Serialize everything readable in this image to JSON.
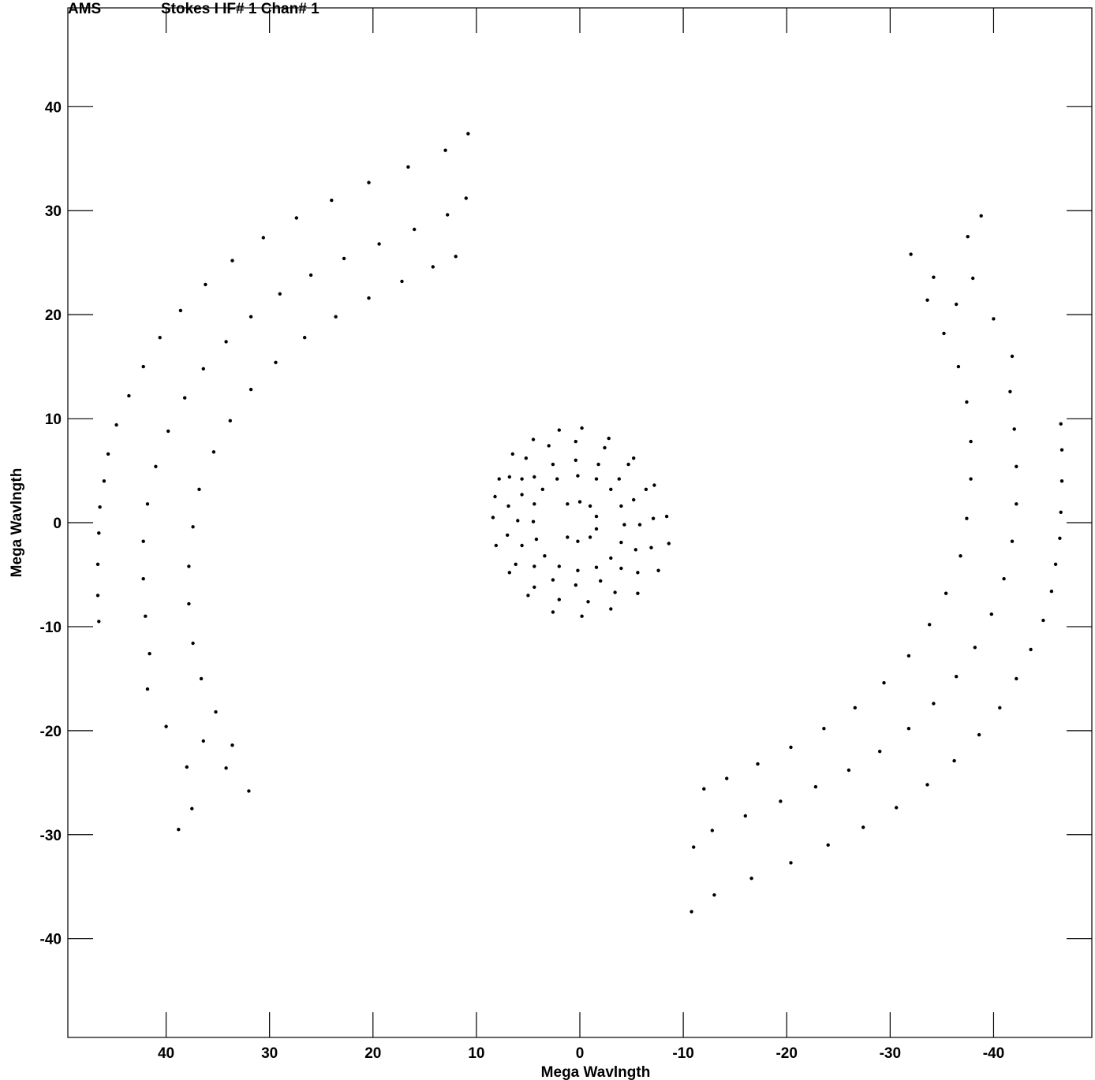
{
  "chart_data": {
    "type": "scatter",
    "title": "Stokes I IF# 1 Chan# 1",
    "title_prefix": "AMS",
    "xlabel": "Mega Wavlngth",
    "ylabel": "Mega Wavlngth",
    "xlim": [
      49.5,
      -49.5
    ],
    "ylim": [
      -49.5,
      49.5
    ],
    "x_reversed": true,
    "grid": false,
    "marker_color": "#000000",
    "xticks": [
      40,
      30,
      20,
      10,
      0,
      -10,
      -20,
      -30,
      -40
    ],
    "xtick_labels": [
      "40",
      "30",
      "20",
      "10",
      "0",
      "-10",
      "-20",
      "-30",
      "-40"
    ],
    "yticks": [
      40,
      30,
      20,
      10,
      0,
      -10,
      -20,
      -30,
      -40
    ],
    "ytick_labels": [
      "40",
      "30",
      "20",
      "10",
      "0",
      "-10",
      "-20",
      "-30",
      "-40"
    ],
    "series": [
      {
        "type": "uv_tracks_inner",
        "points_uv": [
          [
            7.8,
            4.2
          ],
          [
            6.5,
            6.6
          ],
          [
            4.5,
            8.0
          ],
          [
            2.0,
            8.9
          ],
          [
            -0.2,
            9.1
          ],
          [
            -2.8,
            8.1
          ],
          [
            -5.2,
            6.2
          ],
          [
            -7.2,
            3.6
          ],
          [
            -8.4,
            0.6
          ],
          [
            -8.6,
            -2.0
          ],
          [
            -7.6,
            -4.6
          ],
          [
            -5.6,
            -6.8
          ],
          [
            -3.0,
            -8.3
          ],
          [
            -0.2,
            -9.0
          ],
          [
            2.6,
            -8.6
          ],
          [
            5.0,
            -7.0
          ],
          [
            6.8,
            -4.8
          ],
          [
            8.1,
            -2.2
          ],
          [
            8.4,
            0.5
          ],
          [
            8.2,
            2.5
          ],
          [
            6.8,
            4.4
          ],
          [
            5.2,
            6.2
          ],
          [
            3.0,
            7.4
          ],
          [
            0.4,
            7.8
          ],
          [
            -2.4,
            7.2
          ],
          [
            -4.7,
            5.6
          ],
          [
            -6.4,
            3.2
          ],
          [
            -7.1,
            0.4
          ],
          [
            -6.9,
            -2.4
          ],
          [
            -5.6,
            -4.8
          ],
          [
            -3.4,
            -6.7
          ],
          [
            -0.8,
            -7.6
          ],
          [
            2.0,
            -7.4
          ],
          [
            4.4,
            -6.2
          ],
          [
            6.2,
            -4.0
          ],
          [
            7.0,
            -1.2
          ],
          [
            6.9,
            1.6
          ],
          [
            5.6,
            4.2
          ],
          [
            5.6,
            2.7
          ],
          [
            4.4,
            4.4
          ],
          [
            2.6,
            5.6
          ],
          [
            0.4,
            6.0
          ],
          [
            -1.8,
            5.6
          ],
          [
            -3.8,
            4.2
          ],
          [
            -5.2,
            2.2
          ],
          [
            -5.8,
            -0.2
          ],
          [
            -5.4,
            -2.6
          ],
          [
            -4.0,
            -4.4
          ],
          [
            -2.0,
            -5.6
          ],
          [
            0.4,
            -6.0
          ],
          [
            2.6,
            -5.5
          ],
          [
            4.4,
            -4.2
          ],
          [
            5.6,
            -2.2
          ],
          [
            6.0,
            0.2
          ],
          [
            4.4,
            1.8
          ],
          [
            3.6,
            3.2
          ],
          [
            2.2,
            4.2
          ],
          [
            0.2,
            4.5
          ],
          [
            -1.6,
            4.2
          ],
          [
            -3.0,
            3.2
          ],
          [
            -4.0,
            1.6
          ],
          [
            -4.3,
            -0.2
          ],
          [
            -4.0,
            -1.9
          ],
          [
            -3.0,
            -3.4
          ],
          [
            -1.6,
            -4.3
          ],
          [
            0.2,
            -4.6
          ],
          [
            2.0,
            -4.2
          ],
          [
            3.4,
            -3.2
          ],
          [
            4.2,
            -1.6
          ],
          [
            4.5,
            0.1
          ],
          [
            1.2,
            1.8
          ],
          [
            0.0,
            2.0
          ],
          [
            -1.0,
            1.6
          ],
          [
            -1.6,
            0.6
          ],
          [
            -1.6,
            -0.6
          ],
          [
            -1.0,
            -1.4
          ],
          [
            0.2,
            -1.8
          ],
          [
            1.2,
            -1.4
          ]
        ]
      },
      {
        "type": "uv_tracks_outer",
        "points_uv": [
          [
            46.5,
            -9.5
          ],
          [
            46.6,
            -7.0
          ],
          [
            46.6,
            -4.0
          ],
          [
            46.5,
            -1.0
          ],
          [
            46.4,
            1.5
          ],
          [
            46.0,
            4.0
          ],
          [
            45.6,
            6.6
          ],
          [
            44.8,
            9.4
          ],
          [
            43.6,
            12.2
          ],
          [
            42.2,
            15.0
          ],
          [
            40.6,
            17.8
          ],
          [
            38.6,
            20.4
          ],
          [
            36.2,
            22.9
          ],
          [
            33.6,
            25.2
          ],
          [
            30.6,
            27.4
          ],
          [
            27.4,
            29.3
          ],
          [
            24.0,
            31.0
          ],
          [
            20.4,
            32.7
          ],
          [
            16.6,
            34.2
          ],
          [
            13.0,
            35.8
          ],
          [
            10.8,
            37.4
          ],
          [
            41.8,
            -16.0
          ],
          [
            40.0,
            -19.6
          ],
          [
            38.0,
            -23.5
          ],
          [
            37.5,
            -27.5
          ],
          [
            38.8,
            -29.5
          ],
          [
            41.6,
            -12.6
          ],
          [
            42.0,
            -9.0
          ],
          [
            42.2,
            -5.4
          ],
          [
            42.2,
            -1.8
          ],
          [
            41.8,
            1.8
          ],
          [
            41.0,
            5.4
          ],
          [
            39.8,
            8.8
          ],
          [
            38.2,
            12.0
          ],
          [
            36.4,
            14.8
          ],
          [
            34.2,
            17.4
          ],
          [
            31.8,
            19.8
          ],
          [
            29.0,
            22.0
          ],
          [
            26.0,
            23.8
          ],
          [
            22.8,
            25.4
          ],
          [
            19.4,
            26.8
          ],
          [
            16.0,
            28.2
          ],
          [
            12.8,
            29.6
          ],
          [
            11.0,
            31.2
          ],
          [
            36.4,
            -21.0
          ],
          [
            34.2,
            -23.6
          ],
          [
            32.0,
            -25.8
          ],
          [
            33.6,
            -21.4
          ],
          [
            35.2,
            -18.2
          ],
          [
            36.6,
            -15.0
          ],
          [
            37.4,
            -11.6
          ],
          [
            37.8,
            -7.8
          ],
          [
            37.8,
            -4.2
          ],
          [
            37.4,
            -0.4
          ],
          [
            36.8,
            3.2
          ],
          [
            35.4,
            6.8
          ],
          [
            33.8,
            9.8
          ],
          [
            31.8,
            12.8
          ],
          [
            29.4,
            15.4
          ],
          [
            26.6,
            17.8
          ],
          [
            23.6,
            19.8
          ],
          [
            20.4,
            21.6
          ],
          [
            17.2,
            23.2
          ],
          [
            14.2,
            24.6
          ],
          [
            12.0,
            25.6
          ],
          [
            -46.5,
            9.5
          ],
          [
            -46.6,
            7.0
          ],
          [
            -46.6,
            4.0
          ],
          [
            -46.5,
            1.0
          ],
          [
            -46.4,
            -1.5
          ],
          [
            -46.0,
            -4.0
          ],
          [
            -45.6,
            -6.6
          ],
          [
            -44.8,
            -9.4
          ],
          [
            -43.6,
            -12.2
          ],
          [
            -42.2,
            -15.0
          ],
          [
            -40.6,
            -17.8
          ],
          [
            -38.6,
            -20.4
          ],
          [
            -36.2,
            -22.9
          ],
          [
            -33.6,
            -25.2
          ],
          [
            -30.6,
            -27.4
          ],
          [
            -27.4,
            -29.3
          ],
          [
            -24.0,
            -31.0
          ],
          [
            -20.4,
            -32.7
          ],
          [
            -16.6,
            -34.2
          ],
          [
            -13.0,
            -35.8
          ],
          [
            -10.8,
            -37.4
          ],
          [
            -41.8,
            16.0
          ],
          [
            -40.0,
            19.6
          ],
          [
            -38.0,
            23.5
          ],
          [
            -37.5,
            27.5
          ],
          [
            -38.8,
            29.5
          ],
          [
            -41.6,
            12.6
          ],
          [
            -42.0,
            9.0
          ],
          [
            -42.2,
            5.4
          ],
          [
            -42.2,
            1.8
          ],
          [
            -41.8,
            -1.8
          ],
          [
            -41.0,
            -5.4
          ],
          [
            -39.8,
            -8.8
          ],
          [
            -38.2,
            -12.0
          ],
          [
            -36.4,
            -14.8
          ],
          [
            -34.2,
            -17.4
          ],
          [
            -31.8,
            -19.8
          ],
          [
            -29.0,
            -22.0
          ],
          [
            -26.0,
            -23.8
          ],
          [
            -22.8,
            -25.4
          ],
          [
            -19.4,
            -26.8
          ],
          [
            -16.0,
            -28.2
          ],
          [
            -12.8,
            -29.6
          ],
          [
            -11.0,
            -31.2
          ],
          [
            -36.4,
            21.0
          ],
          [
            -34.2,
            23.6
          ],
          [
            -32.0,
            25.8
          ],
          [
            -33.6,
            21.4
          ],
          [
            -35.2,
            18.2
          ],
          [
            -36.6,
            15.0
          ],
          [
            -37.4,
            11.6
          ],
          [
            -37.8,
            7.8
          ],
          [
            -37.8,
            4.2
          ],
          [
            -37.4,
            0.4
          ],
          [
            -36.8,
            -3.2
          ],
          [
            -35.4,
            -6.8
          ],
          [
            -33.8,
            -9.8
          ],
          [
            -31.8,
            -12.8
          ],
          [
            -29.4,
            -15.4
          ],
          [
            -26.6,
            -17.8
          ],
          [
            -23.6,
            -19.8
          ],
          [
            -20.4,
            -21.6
          ],
          [
            -17.2,
            -23.2
          ],
          [
            -14.2,
            -24.6
          ],
          [
            -12.0,
            -25.6
          ]
        ]
      }
    ]
  }
}
